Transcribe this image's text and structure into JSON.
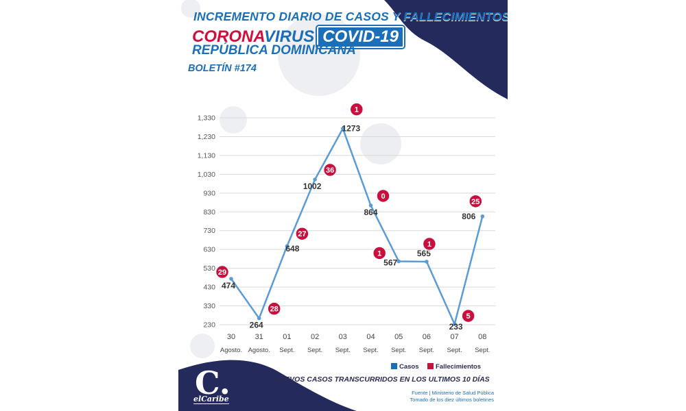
{
  "header": {
    "title": "INCREMENTO DIARIO DE CASOS Y FALLECIMIENTOS",
    "corona": "CORONA",
    "virus": "VIRUS",
    "covid": "COVID-19",
    "country": "REPÚBLICA DOMINICANA",
    "bulletin": "BOLETÍN #174"
  },
  "chart_data": {
    "type": "line",
    "title": "",
    "xlabel": "",
    "ylabel": "",
    "ylim": [
      230,
      1330
    ],
    "yticks": [
      "230",
      "330",
      "430",
      "530",
      "630",
      "730",
      "830",
      "930",
      "1,030",
      "1,130",
      "1,230",
      "1,330"
    ],
    "categories": [
      {
        "day": "30",
        "month": "Agosto."
      },
      {
        "day": "31",
        "month": "Agosto."
      },
      {
        "day": "01",
        "month": "Sept."
      },
      {
        "day": "02",
        "month": "Sept."
      },
      {
        "day": "03",
        "month": "Sept."
      },
      {
        "day": "04",
        "month": "Sept."
      },
      {
        "day": "05",
        "month": "Sept."
      },
      {
        "day": "06",
        "month": "Sept."
      },
      {
        "day": "07",
        "month": "Sept."
      },
      {
        "day": "08",
        "month": "Sept."
      }
    ],
    "series": [
      {
        "name": "Casos",
        "color": "#5b9bd5",
        "values": [
          474,
          264,
          648,
          1002,
          1273,
          864,
          567,
          565,
          233,
          806
        ],
        "labels": [
          "474",
          "264",
          "648",
          "1002",
          "1273",
          "864",
          "567",
          "565",
          "233",
          ""
        ]
      },
      {
        "name": "Fallecimientos",
        "color": "#c8103e",
        "values": [
          29,
          28,
          27,
          36,
          1,
          0,
          1,
          1,
          5,
          25
        ]
      }
    ],
    "extra_labels": [
      "806"
    ],
    "legend": "bottom-right",
    "grid": true
  },
  "footer": {
    "title": "NUEVOS CASOS TRANSCURRIDOS EN LOS ULTIMOS 10 DÍAS",
    "source_line1": "Fuente | Ministerio de Salud Pública",
    "source_line2": "Tomado de  los diez últimos boletines",
    "logo_letter": "C.",
    "logo_text": "elCaribe"
  },
  "colors": {
    "blue": "#1b6fb8",
    "red": "#d0103a",
    "navy": "#242a5c",
    "line": "#5b9bd5"
  }
}
